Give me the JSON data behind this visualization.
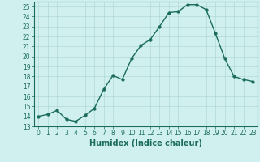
{
  "x": [
    0,
    1,
    2,
    3,
    4,
    5,
    6,
    7,
    8,
    9,
    10,
    11,
    12,
    13,
    14,
    15,
    16,
    17,
    18,
    19,
    20,
    21,
    22,
    23
  ],
  "y": [
    14.0,
    14.2,
    14.6,
    13.7,
    13.5,
    14.1,
    14.8,
    16.7,
    18.1,
    17.7,
    19.8,
    21.1,
    21.7,
    23.0,
    24.4,
    24.5,
    25.2,
    25.2,
    24.7,
    22.3,
    19.8,
    18.0,
    17.7,
    17.5
  ],
  "line_color": "#1a6b5a",
  "marker": "o",
  "markersize": 2.5,
  "linewidth": 1.0,
  "bg_color": "#d0f0f0",
  "grid_color": "#b0d8d8",
  "xlabel": "Humidex (Indice chaleur)",
  "ylabel": "",
  "xlim": [
    -0.5,
    23.5
  ],
  "ylim": [
    13,
    25.5
  ],
  "yticks": [
    13,
    14,
    15,
    16,
    17,
    18,
    19,
    20,
    21,
    22,
    23,
    24,
    25
  ],
  "xticks": [
    0,
    1,
    2,
    3,
    4,
    5,
    6,
    7,
    8,
    9,
    10,
    11,
    12,
    13,
    14,
    15,
    16,
    17,
    18,
    19,
    20,
    21,
    22,
    23
  ],
  "tick_fontsize": 5.5,
  "label_fontsize": 7
}
